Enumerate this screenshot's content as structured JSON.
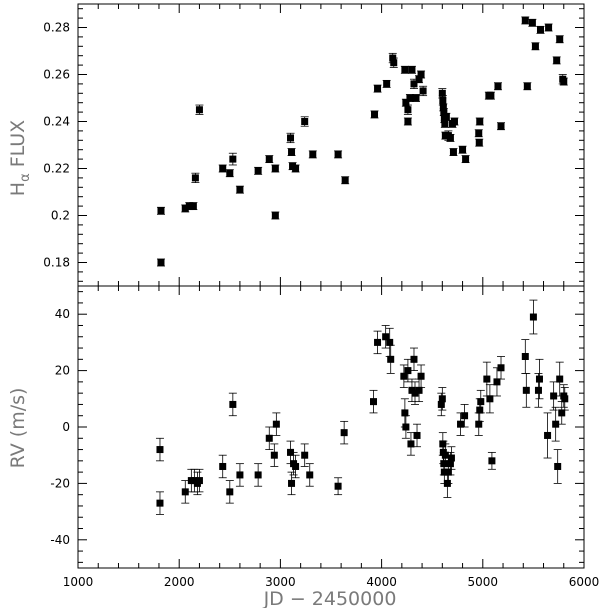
{
  "chart_data": [
    {
      "type": "scatter",
      "title": "",
      "xlabel": "",
      "ylabel": "H",
      "ylabel_subscript": "α",
      "ylabel_suffix": " FLUX",
      "xlim": [
        1000,
        6000
      ],
      "ylim": [
        0.17,
        0.29
      ],
      "y_ticks": [
        0.18,
        0.2,
        0.22,
        0.24,
        0.26,
        0.28
      ],
      "y_tick_labels": [
        "0.18",
        "0.2",
        "0.22",
        "0.24",
        "0.26",
        "0.28"
      ],
      "grid": false,
      "marker": "filled-square",
      "color": "#000000",
      "points": [
        [
          1820,
          0.202,
          0.0015
        ],
        [
          1820,
          0.18,
          0.0015
        ],
        [
          2060,
          0.203,
          0.0015
        ],
        [
          2100,
          0.204,
          0.0015
        ],
        [
          2140,
          0.204,
          0.0015
        ],
        [
          2160,
          0.216,
          0.002
        ],
        [
          2200,
          0.245,
          0.002
        ],
        [
          2430,
          0.22,
          0.0015
        ],
        [
          2500,
          0.218,
          0.0015
        ],
        [
          2530,
          0.224,
          0.0025
        ],
        [
          2600,
          0.211,
          0.0015
        ],
        [
          2780,
          0.219,
          0.0015
        ],
        [
          2890,
          0.224,
          0.0015
        ],
        [
          2950,
          0.22,
          0.0015
        ],
        [
          2950,
          0.2,
          0.0015
        ],
        [
          3100,
          0.233,
          0.002
        ],
        [
          3110,
          0.227,
          0.0015
        ],
        [
          3120,
          0.221,
          0.0015
        ],
        [
          3150,
          0.22,
          0.0015
        ],
        [
          3240,
          0.24,
          0.002
        ],
        [
          3320,
          0.226,
          0.0015
        ],
        [
          3570,
          0.226,
          0.0015
        ],
        [
          3640,
          0.215,
          0.0015
        ],
        [
          3930,
          0.243,
          0.0015
        ],
        [
          3960,
          0.254,
          0.0015
        ],
        [
          4050,
          0.256,
          0.0015
        ],
        [
          4110,
          0.267,
          0.002
        ],
        [
          4120,
          0.265,
          0.002
        ],
        [
          4230,
          0.262,
          0.0015
        ],
        [
          4240,
          0.248,
          0.0015
        ],
        [
          4260,
          0.24,
          0.0015
        ],
        [
          4260,
          0.245,
          0.002
        ],
        [
          4280,
          0.25,
          0.0015
        ],
        [
          4300,
          0.262,
          0.0015
        ],
        [
          4320,
          0.256,
          0.002
        ],
        [
          4340,
          0.25,
          0.0015
        ],
        [
          4370,
          0.258,
          0.0015
        ],
        [
          4390,
          0.26,
          0.0015
        ],
        [
          4410,
          0.253,
          0.002
        ],
        [
          4600,
          0.252,
          0.002
        ],
        [
          4605,
          0.249,
          0.002
        ],
        [
          4610,
          0.246,
          0.0015
        ],
        [
          4615,
          0.244,
          0.0015
        ],
        [
          4620,
          0.241,
          0.0015
        ],
        [
          4625,
          0.239,
          0.0015
        ],
        [
          4630,
          0.234,
          0.0015
        ],
        [
          4640,
          0.242,
          0.0015
        ],
        [
          4660,
          0.234,
          0.002
        ],
        [
          4680,
          0.233,
          0.0015
        ],
        [
          4700,
          0.239,
          0.0015
        ],
        [
          4710,
          0.227,
          0.0015
        ],
        [
          4720,
          0.24,
          0.0015
        ],
        [
          4800,
          0.228,
          0.0015
        ],
        [
          4830,
          0.224,
          0.0015
        ],
        [
          4960,
          0.235,
          0.0015
        ],
        [
          4965,
          0.231,
          0.0015
        ],
        [
          4970,
          0.24,
          0.0015
        ],
        [
          5060,
          0.251,
          0.0015
        ],
        [
          5080,
          0.251,
          0.0015
        ],
        [
          5150,
          0.255,
          0.0015
        ],
        [
          5180,
          0.238,
          0.0015
        ],
        [
          5420,
          0.283,
          0.0015
        ],
        [
          5440,
          0.255,
          0.0015
        ],
        [
          5490,
          0.282,
          0.0015
        ],
        [
          5520,
          0.272,
          0.0015
        ],
        [
          5570,
          0.279,
          0.0015
        ],
        [
          5650,
          0.28,
          0.0015
        ],
        [
          5730,
          0.266,
          0.0015
        ],
        [
          5760,
          0.275,
          0.0015
        ],
        [
          5790,
          0.258,
          0.002
        ],
        [
          5800,
          0.257,
          0.0015
        ]
      ]
    },
    {
      "type": "scatter",
      "title": "",
      "xlabel": "JD − 2450000",
      "ylabel": "RV (m/s)",
      "xlim": [
        1000,
        6000
      ],
      "ylim": [
        -50,
        50
      ],
      "x_ticks": [
        1000,
        2000,
        3000,
        4000,
        5000,
        6000
      ],
      "x_tick_labels": [
        "1000",
        "2000",
        "3000",
        "4000",
        "5000",
        "6000"
      ],
      "y_ticks": [
        -40,
        -20,
        0,
        20,
        40
      ],
      "y_tick_labels": [
        "-40",
        "-20",
        "0",
        "20",
        "40"
      ],
      "grid": false,
      "marker": "filled-square",
      "color": "#000000",
      "points": [
        [
          1810,
          -8,
          4
        ],
        [
          1810,
          -27,
          4
        ],
        [
          2060,
          -23,
          4
        ],
        [
          2120,
          -19,
          4
        ],
        [
          2150,
          -19,
          4
        ],
        [
          2180,
          -20,
          4
        ],
        [
          2200,
          -19,
          4
        ],
        [
          2430,
          -14,
          4
        ],
        [
          2500,
          -23,
          4
        ],
        [
          2530,
          8,
          4
        ],
        [
          2600,
          -17,
          4
        ],
        [
          2780,
          -17,
          4
        ],
        [
          2890,
          -4,
          4
        ],
        [
          2940,
          -10,
          4
        ],
        [
          2960,
          1,
          4
        ],
        [
          3100,
          -9,
          4
        ],
        [
          3110,
          -20,
          4
        ],
        [
          3130,
          -13,
          4
        ],
        [
          3150,
          -14,
          4
        ],
        [
          3240,
          -10,
          4
        ],
        [
          3290,
          -17,
          4
        ],
        [
          3570,
          -21,
          3
        ],
        [
          3630,
          -2,
          4
        ],
        [
          3920,
          9,
          4
        ],
        [
          3960,
          30,
          4
        ],
        [
          4040,
          32,
          4
        ],
        [
          4080,
          30,
          5
        ],
        [
          4090,
          24,
          5
        ],
        [
          4220,
          18,
          4
        ],
        [
          4230,
          5,
          5
        ],
        [
          4240,
          0,
          4
        ],
        [
          4260,
          20,
          4
        ],
        [
          4290,
          -6,
          4
        ],
        [
          4300,
          13,
          4
        ],
        [
          4320,
          24,
          4
        ],
        [
          4330,
          12,
          4
        ],
        [
          4350,
          -3,
          4
        ],
        [
          4370,
          13,
          4
        ],
        [
          4390,
          18,
          4
        ],
        [
          4590,
          8,
          4
        ],
        [
          4600,
          10,
          4
        ],
        [
          4605,
          -6,
          4
        ],
        [
          4610,
          -9,
          4
        ],
        [
          4615,
          -13,
          4
        ],
        [
          4620,
          -16,
          4
        ],
        [
          4630,
          -10,
          4
        ],
        [
          4650,
          -20,
          5
        ],
        [
          4660,
          -16,
          4
        ],
        [
          4680,
          -13,
          4
        ],
        [
          4690,
          -11,
          4
        ],
        [
          4780,
          1,
          4
        ],
        [
          4820,
          4,
          4
        ],
        [
          4960,
          1,
          4
        ],
        [
          4970,
          6,
          4
        ],
        [
          4980,
          9,
          4
        ],
        [
          5040,
          17,
          6
        ],
        [
          5070,
          10,
          5
        ],
        [
          5090,
          -12,
          3
        ],
        [
          5140,
          16,
          5
        ],
        [
          5180,
          21,
          4
        ],
        [
          5420,
          25,
          6
        ],
        [
          5430,
          13,
          6
        ],
        [
          5500,
          39,
          6
        ],
        [
          5550,
          13,
          6
        ],
        [
          5560,
          17,
          7
        ],
        [
          5640,
          -3,
          8
        ],
        [
          5700,
          11,
          5
        ],
        [
          5720,
          1,
          6
        ],
        [
          5740,
          -14,
          6
        ],
        [
          5760,
          17,
          6
        ],
        [
          5780,
          5,
          4
        ],
        [
          5800,
          11,
          4
        ],
        [
          5810,
          10,
          4
        ]
      ]
    }
  ]
}
